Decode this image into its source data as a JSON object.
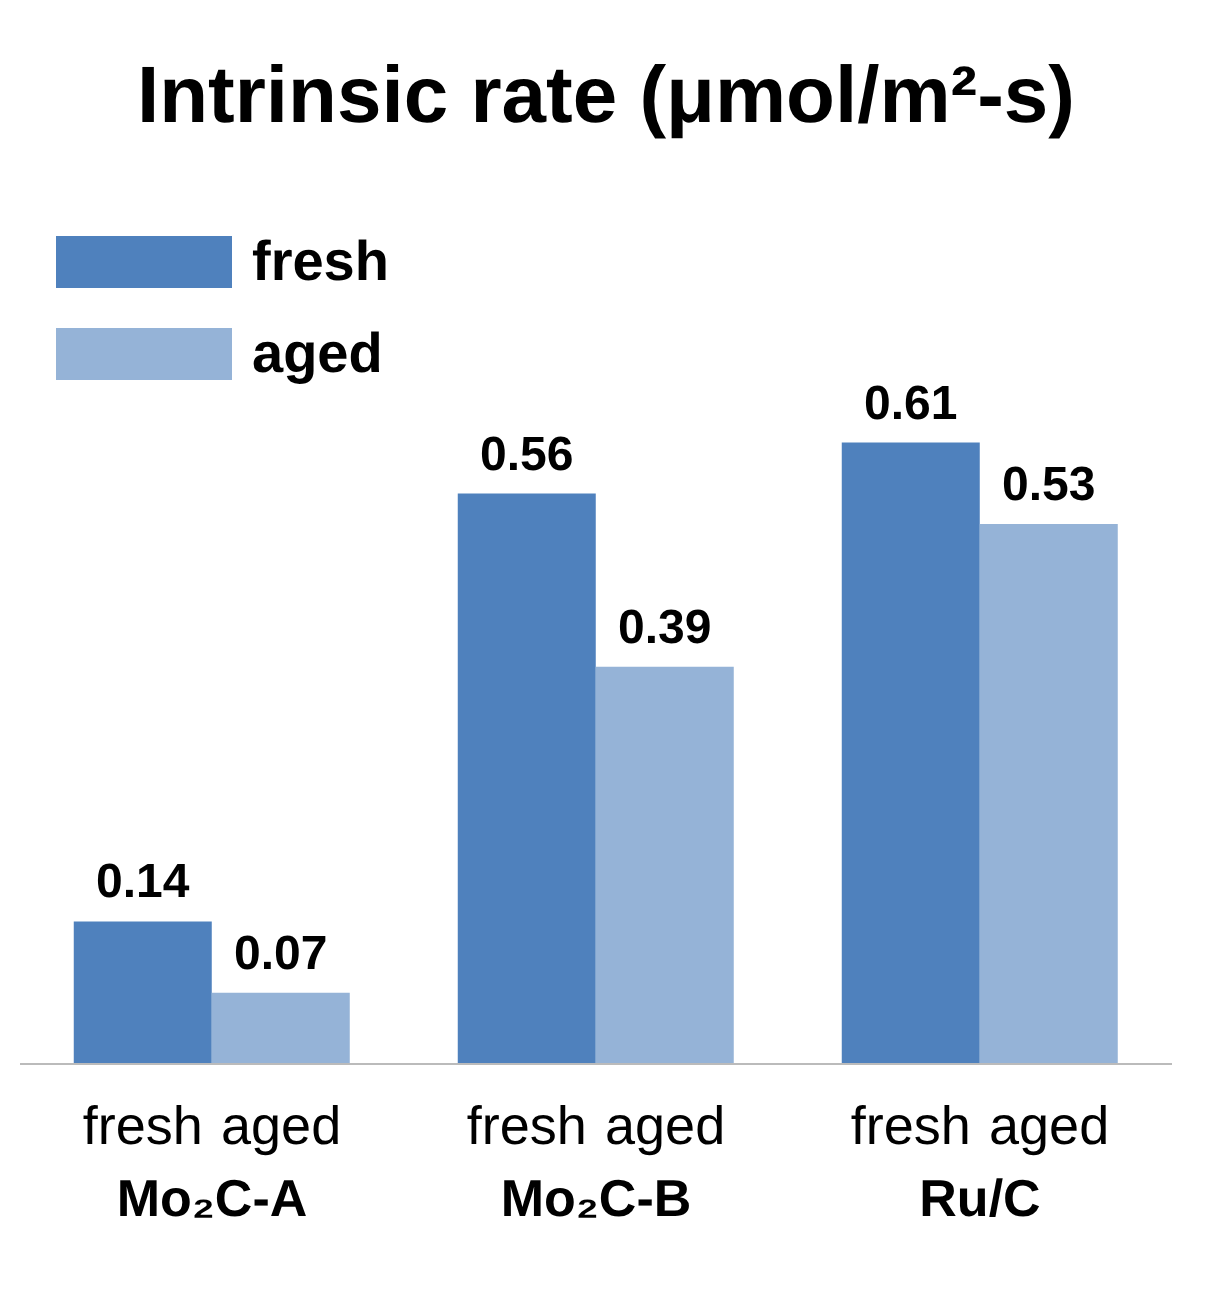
{
  "chart_data": {
    "type": "bar",
    "title": "Intrinsic rate (μmol/m²-s)",
    "categories": [
      "Mo₂C-A",
      "Mo₂C-B",
      "Ru/C"
    ],
    "series": [
      {
        "name": "fresh",
        "color": "#4f81bd",
        "values": [
          0.14,
          0.56,
          0.61
        ]
      },
      {
        "name": "aged",
        "color": "#95b3d7",
        "values": [
          0.07,
          0.39,
          0.53
        ]
      }
    ],
    "data_labels": true,
    "legend": "top left"
  }
}
